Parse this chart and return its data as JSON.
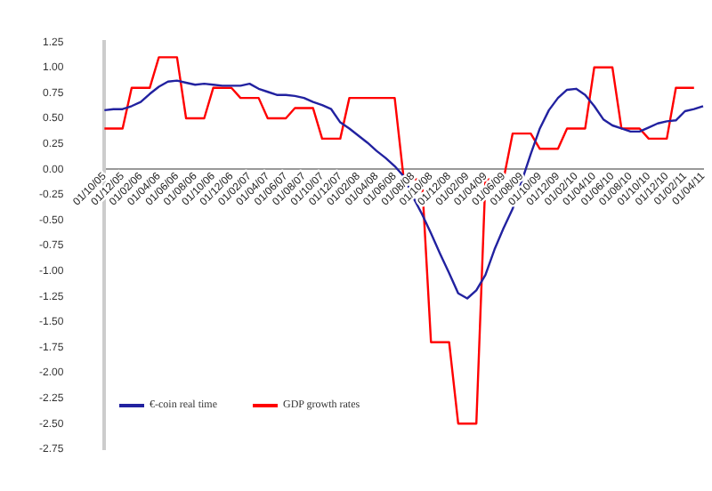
{
  "chart_data": {
    "type": "line",
    "categories": [
      "01/10/05",
      null,
      "01/12/05",
      null,
      "01/02/06",
      null,
      "01/04/06",
      null,
      "01/06/06",
      null,
      "01/08/06",
      null,
      "01/10/06",
      null,
      "01/12/06",
      null,
      "01/02/07",
      null,
      "01/04/07",
      null,
      "01/06/07",
      null,
      "01/08/07",
      null,
      "01/10/07",
      null,
      "01/12/07",
      null,
      "01/02/08",
      null,
      "01/04/08",
      null,
      "01/06/08",
      null,
      "01/08/08",
      null,
      "01/10/08",
      null,
      "01/12/08",
      null,
      "01/02/09",
      null,
      "01/04/09",
      null,
      "01/06/09",
      null,
      "01/08/09",
      null,
      "01/10/09",
      null,
      "01/12/09",
      null,
      "01/02/10",
      null,
      "01/04/10",
      null,
      "01/06/10",
      null,
      "01/08/10",
      null,
      "01/10/10",
      null,
      "01/12/10",
      null,
      "01/02/11",
      null,
      "01/04/11"
    ],
    "series": [
      {
        "name": "€-coin real time",
        "color": "#2222a0",
        "values": [
          0.58,
          0.59,
          0.59,
          0.62,
          0.66,
          0.74,
          0.81,
          0.86,
          0.87,
          0.85,
          0.83,
          0.84,
          0.83,
          0.82,
          0.82,
          0.82,
          0.84,
          0.79,
          0.76,
          0.73,
          0.73,
          0.72,
          0.7,
          0.66,
          0.63,
          0.59,
          0.46,
          0.4,
          0.33,
          0.26,
          0.18,
          0.11,
          0.03,
          -0.07,
          -0.27,
          -0.44,
          -0.63,
          -0.83,
          -1.02,
          -1.22,
          -1.27,
          -1.19,
          -1.04,
          -0.79,
          -0.58,
          -0.39,
          -0.12,
          0.15,
          0.4,
          0.58,
          0.7,
          0.78,
          0.79,
          0.73,
          0.62,
          0.49,
          0.43,
          0.4,
          0.37,
          0.37,
          0.41,
          0.45,
          0.47,
          0.48,
          0.57,
          0.59,
          0.62
        ]
      },
      {
        "name": "GDP growth rates",
        "color": "#ff0000",
        "values": [
          0.4,
          0.4,
          0.4,
          0.8,
          0.8,
          0.8,
          1.1,
          1.1,
          1.1,
          0.5,
          0.5,
          0.5,
          0.8,
          0.8,
          0.8,
          0.7,
          0.7,
          0.7,
          0.5,
          0.5,
          0.5,
          0.6,
          0.6,
          0.6,
          0.3,
          0.3,
          0.3,
          0.7,
          0.7,
          0.7,
          0.7,
          0.7,
          0.7,
          -0.1,
          -0.1,
          -0.1,
          -1.7,
          -1.7,
          -1.7,
          -2.5,
          -2.5,
          -2.5,
          -0.1,
          -0.1,
          -0.1,
          0.35,
          0.35,
          0.35,
          0.2,
          0.2,
          0.2,
          0.4,
          0.4,
          0.4,
          1.0,
          1.0,
          1.0,
          0.4,
          0.4,
          0.4,
          0.3,
          0.3,
          0.3,
          0.8,
          0.8,
          0.8,
          null
        ]
      }
    ],
    "ylim": [
      -2.75,
      1.25
    ],
    "yticks": [
      {
        "value": -2.75,
        "label": "-2.75"
      },
      {
        "value": -2.5,
        "label": "-2.50"
      },
      {
        "value": -2.25,
        "label": "-2.25"
      },
      {
        "value": -2,
        "label": "-2.00"
      },
      {
        "value": -1.75,
        "label": "-1.75"
      },
      {
        "value": -1.5,
        "label": "-1.50"
      },
      {
        "value": -1.25,
        "label": "-1.25"
      },
      {
        "value": -1,
        "label": "-1.00"
      },
      {
        "value": -0.75,
        "label": "-0.75"
      },
      {
        "value": -0.5,
        "label": "-0.50"
      },
      {
        "value": -0.25,
        "label": "-0.25"
      },
      {
        "value": 0,
        "label": "0.00"
      },
      {
        "value": 0.25,
        "label": "0.25"
      },
      {
        "value": 0.5,
        "label": "0.50"
      },
      {
        "value": 0.75,
        "label": "0.75"
      },
      {
        "value": 1,
        "label": "1.00"
      },
      {
        "value": 1.25,
        "label": "1.25"
      }
    ],
    "grid": false,
    "legend": "bottom",
    "marker": "none",
    "line_style": "solid"
  }
}
